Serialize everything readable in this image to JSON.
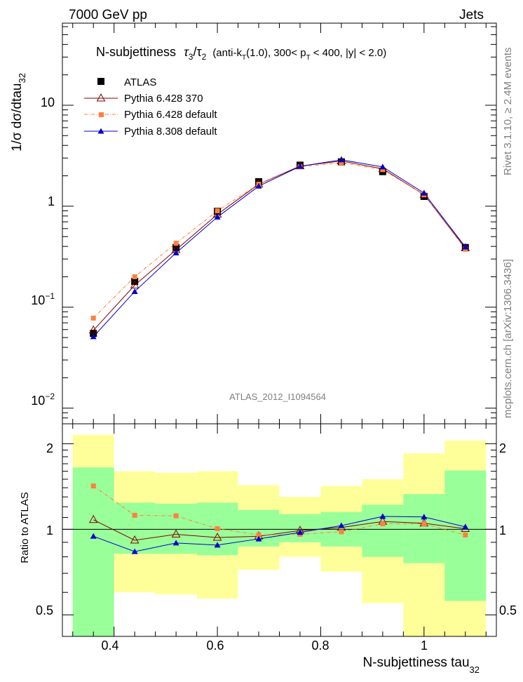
{
  "header": {
    "left": "7000 GeV pp",
    "right": "Jets"
  },
  "side_text": {
    "top": "Rivet 3.1.10, ≥ 2.4M events",
    "bottom": "mcplots.cern.ch [arXiv:1306.3436]"
  },
  "title": {
    "main": "N-subjettiness",
    "formula": "τ",
    "sub3": "3",
    "slash": "/τ",
    "sub2": "2",
    "rest1": "(anti-k",
    "subT": "T",
    "rest2": "(1.0), 300< p",
    "subT2": "T",
    "rest3": "< 400, |y| < 2.0)"
  },
  "analysis_label": "ATLAS_2012_I1094564",
  "axes": {
    "ylabel_main_prefix": "1/σ dσ/dtau",
    "ylabel_main_sub": "32",
    "ylabel_ratio": "Ratio to ATLAS",
    "xlabel_prefix": "N-subjettiness tau",
    "xlabel_sub": "32",
    "y_tick_labels_main": [
      {
        "base": "10",
        "exp": "−2",
        "value": 0.01
      },
      {
        "base": "10",
        "exp": "−1",
        "value": 0.1
      },
      {
        "base": "1",
        "exp": "",
        "value": 1
      },
      {
        "base": "10",
        "exp": "",
        "value": 10
      }
    ],
    "x_tick_labels": [
      "0.4",
      "0.6",
      "0.8",
      "1"
    ],
    "ratio_tick_labels": [
      "2",
      "1",
      "0.5"
    ]
  },
  "legend": [
    {
      "label": "ATLAS",
      "color": "#000000"
    },
    {
      "label": "Pythia 6.428 370",
      "color": "#7f0000"
    },
    {
      "label": "Pythia 6.428 default",
      "color": "#ff7f3f"
    },
    {
      "label": "Pythia 8.308 default",
      "color": "#0000cc"
    }
  ],
  "chart_data": {
    "type": "line",
    "x_bin_edges": [
      0.32,
      0.4,
      0.48,
      0.56,
      0.64,
      0.72,
      0.8,
      0.88,
      0.96,
      1.04,
      1.12
    ],
    "x": [
      0.36,
      0.44,
      0.52,
      0.6,
      0.68,
      0.76,
      0.84,
      0.92,
      1.0,
      1.08
    ],
    "xlim": [
      0.3,
      1.14
    ],
    "ylim_main": [
      0.007,
      65
    ],
    "yscale_main": "log",
    "ylim_ratio": [
      0.42,
      2.35
    ],
    "yscale_ratio": "log",
    "series": [
      {
        "name": "ATLAS",
        "values": [
          0.055,
          0.18,
          0.39,
          0.89,
          1.75,
          2.55,
          2.75,
          2.2,
          1.25,
          0.39
        ]
      },
      {
        "name": "Pythia 6.428 370",
        "values": [
          0.059,
          0.165,
          0.37,
          0.83,
          1.65,
          2.5,
          2.8,
          2.35,
          1.3,
          0.385
        ]
      },
      {
        "name": "Pythia 6.428 default",
        "values": [
          0.078,
          0.2,
          0.43,
          0.9,
          1.65,
          2.45,
          2.7,
          2.3,
          1.3,
          0.375
        ]
      },
      {
        "name": "Pythia 8.308 default",
        "values": [
          0.051,
          0.143,
          0.345,
          0.78,
          1.58,
          2.48,
          2.88,
          2.45,
          1.35,
          0.395
        ]
      }
    ],
    "ratio_series": [
      {
        "name": "Pythia 6.428 370",
        "values": [
          1.08,
          0.915,
          0.96,
          0.935,
          0.945,
          0.99,
          1.015,
          1.065,
          1.05,
          1.005
        ]
      },
      {
        "name": "Pythia 6.428 default",
        "values": [
          1.42,
          1.12,
          1.115,
          1.005,
          0.955,
          0.96,
          0.98,
          1.045,
          1.045,
          0.955
        ]
      },
      {
        "name": "Pythia 8.308 default",
        "values": [
          0.945,
          0.835,
          0.895,
          0.88,
          0.925,
          0.975,
          1.03,
          1.11,
          1.105,
          1.02
        ]
      }
    ],
    "ratio_band_stat": [
      [
        0.0,
        1.65
      ],
      [
        0.82,
        1.24
      ],
      [
        0.82,
        1.23
      ],
      [
        0.81,
        1.24
      ],
      [
        0.87,
        1.17
      ],
      [
        0.9,
        1.13
      ],
      [
        0.87,
        1.15
      ],
      [
        0.8,
        1.22
      ],
      [
        0.76,
        1.33
      ],
      [
        0.56,
        1.61
      ]
    ],
    "ratio_band_total": [
      [
        0.0,
        2.15
      ],
      [
        0.6,
        1.6
      ],
      [
        0.59,
        1.58
      ],
      [
        0.57,
        1.6
      ],
      [
        0.72,
        1.43
      ],
      [
        0.8,
        1.3
      ],
      [
        0.71,
        1.42
      ],
      [
        0.55,
        1.5
      ],
      [
        0.4,
        1.85
      ],
      [
        0.33,
        2.05
      ]
    ],
    "legend_position": "top-left",
    "grid": false
  }
}
